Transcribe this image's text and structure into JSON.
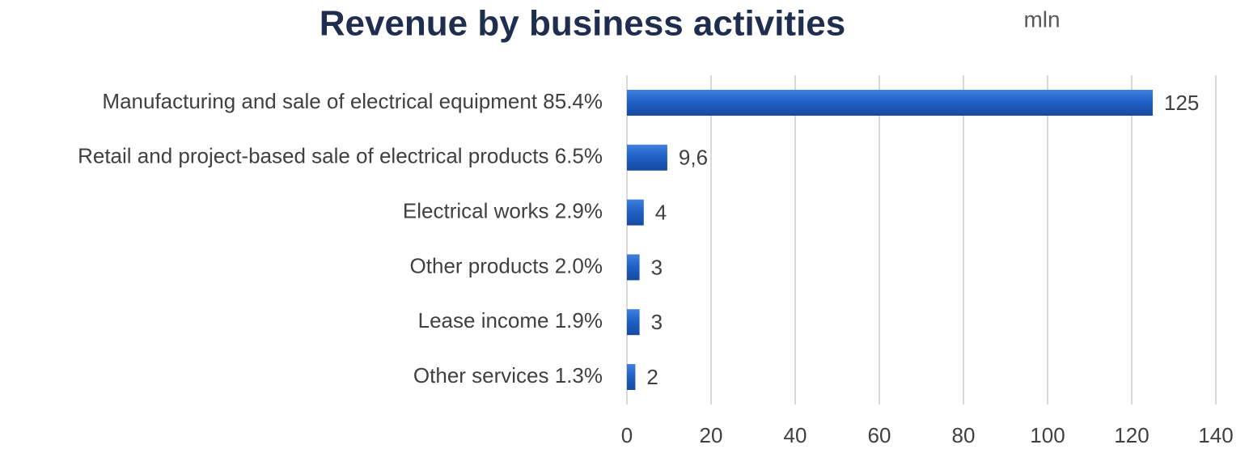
{
  "chart_data": {
    "type": "bar",
    "orientation": "horizontal",
    "title": "Revenue by business activities",
    "unit_label": "mln",
    "categories": [
      "Manufacturing and sale of electrical equipment 85.4%",
      "Retail and project-based sale of electrical products 6.5%",
      "Electrical works 2.9%",
      "Other products 2.0%",
      "Lease income 1.9%",
      "Other services 1.3%"
    ],
    "values": [
      125,
      9.6,
      4,
      3,
      3,
      2
    ],
    "value_labels": [
      "125",
      "9,6",
      "4",
      "3",
      "3",
      "2"
    ],
    "color": "#1f5fc4",
    "xlim": [
      0,
      140
    ],
    "xticks": [
      0,
      20,
      40,
      60,
      80,
      100,
      120,
      140
    ],
    "grid": true
  }
}
